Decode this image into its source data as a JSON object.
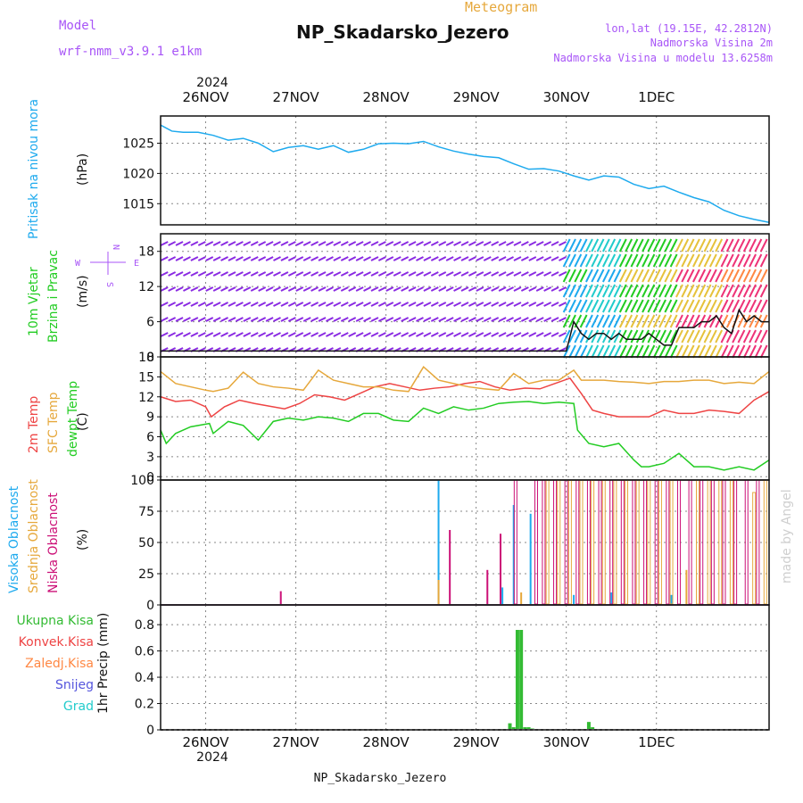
{
  "header": {
    "model_label": "Model",
    "model_value": "wrf-nmm_v3.9.1  e1km",
    "product": "Meteogram",
    "station": "NP_Skadarsko_Jezero",
    "lonlat": "lon,lat (19.15E, 42.2812N)",
    "elevation": "Nadmorska Visina 2m",
    "model_elevation": "Nadmorska Visina u modelu 13.6258m",
    "footer_station": "NP_Skadarsko_Jezero",
    "credit": "made by Angel",
    "year": "2024"
  },
  "colors": {
    "pressure": "#1eaaee",
    "wind_calm": "#8a2be2",
    "temp2m": "#ee4444",
    "sfc": "#e6a83c",
    "dewpt": "#22cc22",
    "high_cloud": "#1eaaee",
    "mid_cloud": "#e6a83c",
    "low_cloud": "#cc1177",
    "precip_total": "#33bb33",
    "grid": "#888888"
  },
  "x_axis": {
    "days": [
      "26NOV",
      "27NOV",
      "28NOV",
      "29NOV",
      "30NOV",
      "1DEC"
    ],
    "first_label_year": "2024"
  },
  "legend_labels": {
    "pressure": [
      "Pritisak na nivou mora"
    ],
    "pressure_unit": "(hPa)",
    "wind": [
      "10m Vjetar",
      "Brzina i Pravac"
    ],
    "wind_unit": "(m/s)",
    "compass": {
      "n": "N",
      "s": "S",
      "e": "E",
      "w": "W"
    },
    "temp": [
      {
        "text": "2m Temp",
        "color": "#ee4444"
      },
      {
        "text": "SFC Temp",
        "color": "#e6a83c"
      },
      {
        "text": "dewpt Temp",
        "color": "#22cc22"
      }
    ],
    "temp_unit": "(C)",
    "cloud": [
      {
        "text": "Visoka Oblacnost",
        "color": "#1eaaee"
      },
      {
        "text": "Srednja Oblacnost",
        "color": "#e6a83c"
      },
      {
        "text": "Niska Oblacnost",
        "color": "#cc1177"
      }
    ],
    "cloud_unit": "(%)",
    "precip": [
      {
        "text": "Ukupna Kisa",
        "color": "#33bb33"
      },
      {
        "text": "Konvek.Kisa",
        "color": "#ee4444"
      },
      {
        "text": "Zaledj.Kisa",
        "color": "#ff8844"
      },
      {
        "text": "Snijeg",
        "color": "#5555dd"
      },
      {
        "text": "Grad",
        "color": "#22cccc"
      }
    ],
    "precip_unit": "1hr Precip (mm)"
  },
  "chart_data": [
    {
      "type": "line",
      "name": "pressure",
      "x_unit": "hours since 25NOV 12:00",
      "ylim": [
        1011.5,
        1029.5
      ],
      "yticks": [
        1015,
        1020,
        1025
      ],
      "series": [
        {
          "color_key": "pressure",
          "x": [
            0,
            3,
            6,
            10,
            14,
            18,
            22,
            26,
            30,
            34,
            38,
            42,
            46,
            50,
            54,
            58,
            62,
            66,
            70,
            74,
            78,
            82,
            86,
            90,
            94,
            98,
            102,
            106,
            110,
            114,
            118,
            122,
            126,
            130,
            134,
            138,
            142,
            146,
            150,
            154,
            158,
            162
          ],
          "values": [
            1028,
            1027,
            1026.8,
            1026.8,
            1026.3,
            1025.5,
            1025.8,
            1025,
            1023.6,
            1024.3,
            1024.6,
            1024,
            1024.6,
            1023.5,
            1024,
            1024.9,
            1025,
            1024.9,
            1025.3,
            1024.4,
            1023.7,
            1023.2,
            1022.8,
            1022.6,
            1021.6,
            1020.7,
            1020.8,
            1020.4,
            1019.6,
            1018.9,
            1019.6,
            1019.4,
            1018.2,
            1017.5,
            1017.9,
            1016.9,
            1016,
            1015.3,
            1013.9,
            1013,
            1012.4,
            1011.9
          ]
        }
      ]
    },
    {
      "type": "wind",
      "name": "wind",
      "ylim": [
        0,
        21
      ],
      "yticks": [
        0,
        6,
        12,
        18
      ],
      "speed": {
        "x": [
          0,
          20,
          40,
          60,
          80,
          100,
          108,
          110,
          112,
          114,
          116,
          118,
          120,
          122,
          124,
          126,
          128,
          130,
          132,
          134,
          136,
          138,
          140,
          142,
          144,
          146,
          148,
          150,
          152,
          154,
          156,
          158,
          160,
          162
        ],
        "values": [
          1,
          1,
          1,
          1,
          1,
          1,
          1,
          6,
          4,
          3,
          4,
          4,
          3,
          4,
          3,
          3,
          3,
          4,
          3,
          2,
          2,
          5,
          5,
          5,
          6,
          6,
          7,
          5,
          4,
          8,
          6,
          7,
          6,
          6
        ]
      }
    },
    {
      "type": "line",
      "name": "temperature",
      "ylim": [
        -0.5,
        18
      ],
      "yticks": [
        0,
        3,
        6,
        9,
        12,
        15,
        18
      ],
      "series": [
        {
          "name": "2m Temp",
          "color_key": "temp2m",
          "x": [
            0,
            4,
            8,
            12,
            13.5,
            17,
            21,
            25,
            29,
            33,
            37,
            41,
            45,
            49,
            53,
            57,
            61,
            65,
            69,
            73,
            77,
            81,
            85,
            89,
            93,
            97,
            101,
            105,
            109,
            112,
            115,
            118,
            122,
            126,
            130,
            134,
            138,
            142,
            146,
            150,
            154,
            158,
            162
          ],
          "values": [
            12,
            11.3,
            11.5,
            10.5,
            9,
            10.5,
            11.5,
            11,
            10.6,
            10.2,
            11,
            12.3,
            12,
            11.5,
            12.5,
            13.5,
            14,
            13.5,
            13,
            13.3,
            13.5,
            14,
            14.3,
            13.5,
            13,
            13.3,
            13.2,
            14,
            14.8,
            12.5,
            10,
            9.5,
            9,
            9,
            9,
            10,
            9.5,
            9.5,
            10,
            9.8,
            9.5,
            11.5,
            12.8
          ]
        },
        {
          "name": "SFC Temp",
          "color_key": "sfc",
          "x": [
            0,
            4,
            8,
            12,
            14,
            18,
            22,
            26,
            30,
            34,
            38,
            42,
            46,
            50,
            54,
            58,
            62,
            66,
            70,
            74,
            78,
            82,
            86,
            90,
            94,
            98,
            102,
            106,
            110,
            112,
            114,
            118,
            122,
            126,
            130,
            134,
            138,
            142,
            146,
            150,
            154,
            158,
            162
          ],
          "values": [
            15.8,
            14,
            13.5,
            13,
            12.8,
            13.3,
            15.7,
            14,
            13.5,
            13.3,
            13,
            16,
            14.5,
            14,
            13.5,
            13.5,
            13,
            12.8,
            16.5,
            14.5,
            14,
            13.5,
            13.2,
            13,
            15.5,
            14,
            14.5,
            14.5,
            16,
            14.5,
            14.5,
            14.5,
            14.3,
            14.2,
            14,
            14.3,
            14.3,
            14.5,
            14.5,
            14,
            14.2,
            14,
            15.8
          ]
        },
        {
          "name": "dewpt Temp",
          "color_key": "dewpt",
          "x": [
            0,
            1.5,
            4,
            8,
            13,
            14,
            18,
            22,
            26,
            30,
            34,
            38,
            42,
            46,
            50,
            54,
            58,
            62,
            66,
            70,
            74,
            78,
            82,
            86,
            90,
            94,
            98,
            102,
            106,
            110,
            110.5,
            111,
            114,
            118,
            122,
            126,
            128,
            130,
            134,
            138,
            142,
            146,
            150,
            154,
            158,
            162
          ],
          "values": [
            7,
            5,
            6.5,
            7.5,
            8,
            6.5,
            8.3,
            7.7,
            5.5,
            8.3,
            8.8,
            8.5,
            9,
            8.8,
            8.3,
            9.5,
            9.5,
            8.5,
            8.3,
            10.3,
            9.5,
            10.5,
            10,
            10.3,
            11,
            11.2,
            11.3,
            11,
            11.2,
            11,
            9,
            7,
            5,
            4.5,
            5,
            2.5,
            1.5,
            1.5,
            2,
            3.5,
            1.5,
            1.5,
            1,
            1.5,
            1,
            2.5
          ]
        }
      ]
    },
    {
      "type": "bar",
      "name": "cloud cover",
      "ylim": [
        0,
        100
      ],
      "yticks": [
        0,
        25,
        50,
        75,
        100
      ],
      "series": [
        {
          "name": "Visoka Oblacnost",
          "color_key": "high_cloud",
          "x": [
            74,
            91,
            94,
            98.5,
            110,
            120,
            136
          ],
          "values": [
            100,
            14,
            80,
            73,
            8,
            10,
            8
          ]
        },
        {
          "name": "Srednja Oblacnost",
          "color_key": "mid_cloud",
          "x": [
            74,
            96,
            103,
            106,
            109,
            112,
            115,
            118,
            121,
            124,
            127,
            130,
            133,
            136,
            140,
            143,
            146,
            149,
            152,
            158,
            161
          ],
          "values": [
            20,
            10,
            100,
            100,
            100,
            100,
            100,
            100,
            100,
            100,
            100,
            100,
            100,
            100,
            28,
            100,
            100,
            100,
            100,
            90,
            100
          ]
        },
        {
          "name": "Niska Oblacnost",
          "color_key": "low_cloud",
          "x": [
            32,
            77,
            87,
            90.5,
            94.5,
            100,
            102,
            105,
            108,
            111,
            114,
            117,
            120,
            123,
            126,
            129,
            132,
            135,
            138,
            141,
            144,
            147,
            150,
            153,
            156,
            159
          ],
          "values": [
            11,
            60,
            28,
            57,
            100,
            100,
            100,
            100,
            100,
            100,
            100,
            100,
            100,
            100,
            100,
            100,
            100,
            100,
            100,
            100,
            100,
            100,
            100,
            100,
            100,
            100
          ]
        }
      ]
    },
    {
      "type": "bar",
      "name": "precipitation",
      "ylim": [
        0,
        0.95
      ],
      "yticks": [
        0,
        0.2,
        0.4,
        0.6,
        0.8
      ],
      "series": [
        {
          "name": "Ukupna Kisa",
          "color_key": "precip_total",
          "x": [
            93,
            94,
            95,
            96,
            97,
            98,
            99,
            114,
            115
          ],
          "values": [
            0.05,
            0.02,
            0.76,
            0.76,
            0.02,
            0.02,
            0.01,
            0.06,
            0.02
          ]
        }
      ]
    }
  ]
}
